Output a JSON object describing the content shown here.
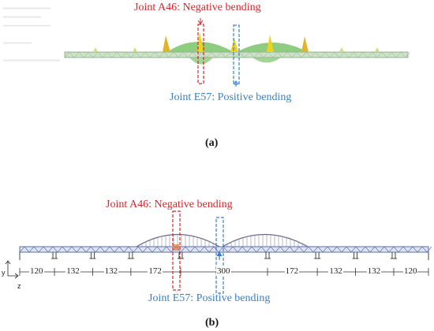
{
  "panel_a": {
    "label": "(a)",
    "negative_label": "Joint A46: Negative bending",
    "positive_label": "Joint E57: Positive bending"
  },
  "panel_b": {
    "label": "(b)",
    "negative_label": "Joint A46: Negative bending",
    "positive_label": "Joint E57: Positive bending",
    "spans": [
      "120",
      "132",
      "132",
      "172",
      "300",
      "172",
      "132",
      "132",
      "120"
    ],
    "axis_y": "y",
    "axis_z": "z"
  },
  "colors": {
    "negative": "#d8242a",
    "positive": "#3a7ec4",
    "truss": "#5a6fb0",
    "moment": "#2f9a3a",
    "moment_peak": "#f0d21a"
  }
}
